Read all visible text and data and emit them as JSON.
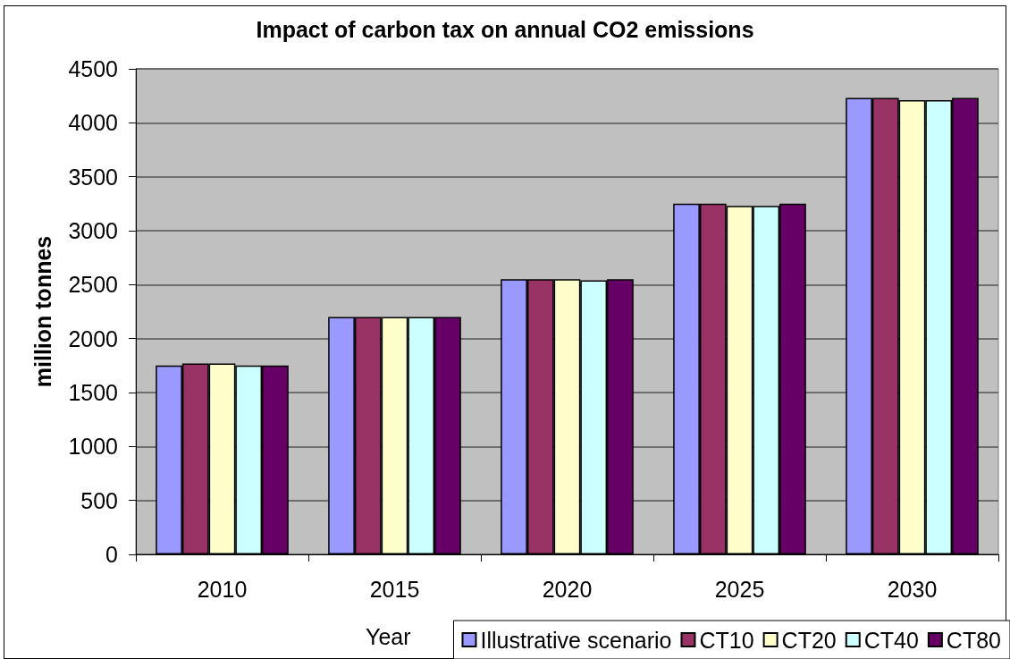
{
  "chart_data": {
    "type": "bar",
    "title": "Impact of carbon tax on annual CO2 emissions",
    "xlabel": "Year",
    "ylabel": "million tonnes",
    "categories": [
      "2010",
      "2015",
      "2020",
      "2025",
      "2030"
    ],
    "series": [
      {
        "name": "Illustrative scenario",
        "color": "#9999ff",
        "values": [
          1750,
          2200,
          2550,
          3250,
          4230
        ]
      },
      {
        "name": "CT10",
        "color": "#993366",
        "values": [
          1770,
          2200,
          2550,
          3250,
          4230
        ]
      },
      {
        "name": "CT20",
        "color": "#ffffcc",
        "values": [
          1770,
          2200,
          2550,
          3230,
          4210
        ]
      },
      {
        "name": "CT40",
        "color": "#ccffff",
        "values": [
          1750,
          2200,
          2540,
          3230,
          4210
        ]
      },
      {
        "name": "CT80",
        "color": "#660066",
        "values": [
          1750,
          2200,
          2550,
          3250,
          4230
        ]
      }
    ],
    "ylim": [
      0,
      4500
    ],
    "yticks": [
      0,
      500,
      1000,
      1500,
      2000,
      2500,
      3000,
      3500,
      4000,
      4500
    ],
    "grid": "y",
    "legend": "bottom right"
  }
}
